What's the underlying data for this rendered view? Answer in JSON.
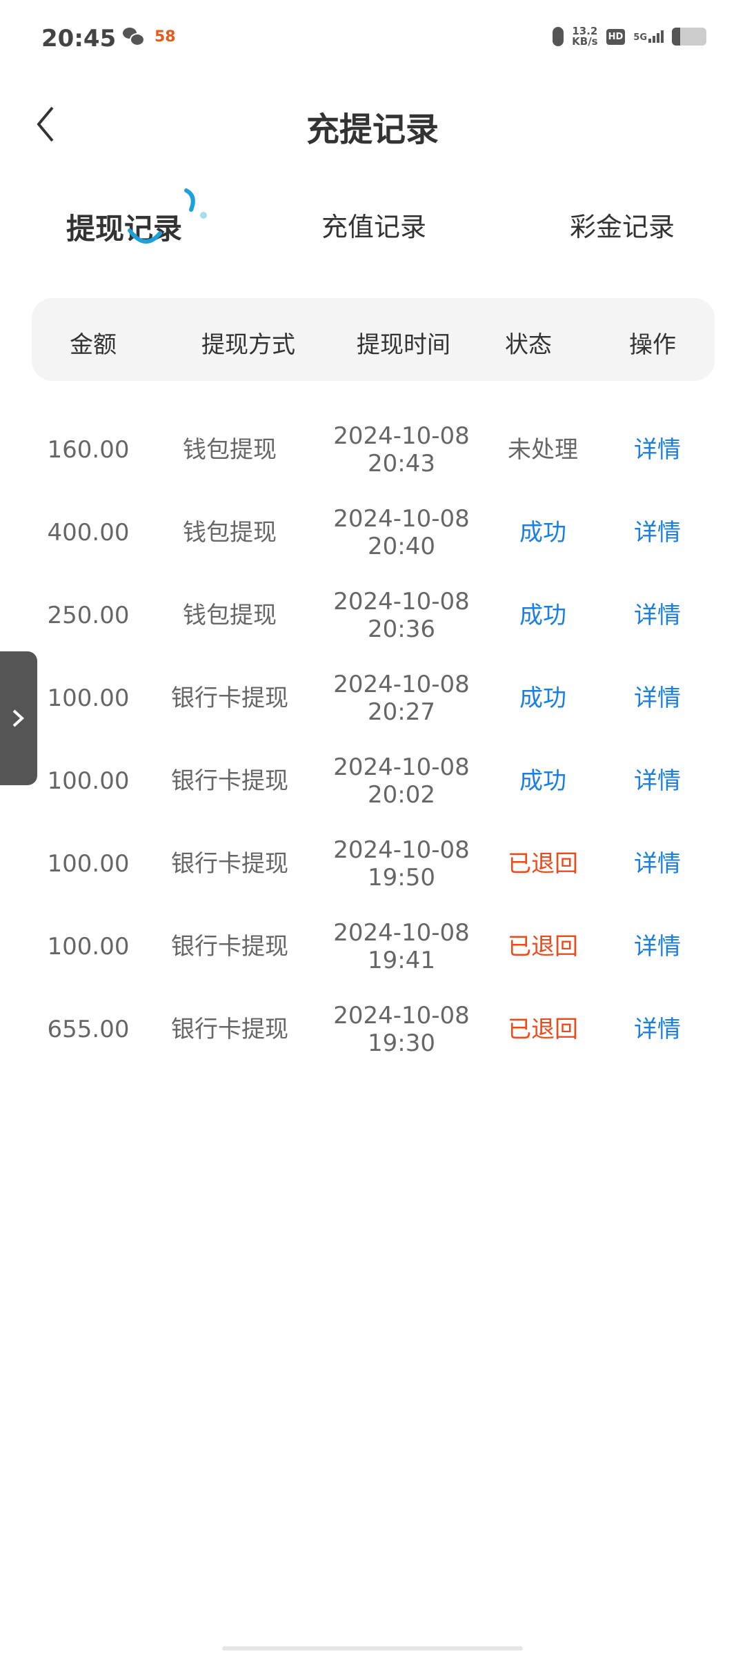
{
  "status_bar": {
    "time": "20:45",
    "net_speed_value": "13.2",
    "net_speed_unit": "KB/s",
    "hd": "HD",
    "network": "5G",
    "app_badge": "58",
    "battery_level": 0.25
  },
  "header": {
    "title": "充提记录"
  },
  "tabs": [
    {
      "label": "提现记录",
      "active": true
    },
    {
      "label": "充值记录",
      "active": false
    },
    {
      "label": "彩金记录",
      "active": false
    }
  ],
  "table": {
    "columns": [
      "金额",
      "提现方式",
      "提现时间",
      "状态",
      "操作"
    ],
    "rows": [
      {
        "amount": "160.00",
        "method": "钱包提现",
        "date": "2024-10-08",
        "time": "20:43",
        "status": "未处理",
        "status_type": "pending",
        "action": "详情"
      },
      {
        "amount": "400.00",
        "method": "钱包提现",
        "date": "2024-10-08",
        "time": "20:40",
        "status": "成功",
        "status_type": "success",
        "action": "详情"
      },
      {
        "amount": "250.00",
        "method": "钱包提现",
        "date": "2024-10-08",
        "time": "20:36",
        "status": "成功",
        "status_type": "success",
        "action": "详情"
      },
      {
        "amount": "100.00",
        "method": "银行卡提现",
        "date": "2024-10-08",
        "time": "20:27",
        "status": "成功",
        "status_type": "success",
        "action": "详情"
      },
      {
        "amount": "100.00",
        "method": "银行卡提现",
        "date": "2024-10-08",
        "time": "20:02",
        "status": "成功",
        "status_type": "success",
        "action": "详情"
      },
      {
        "amount": "100.00",
        "method": "银行卡提现",
        "date": "2024-10-08",
        "time": "19:50",
        "status": "已退回",
        "status_type": "returned",
        "action": "详情"
      },
      {
        "amount": "100.00",
        "method": "银行卡提现",
        "date": "2024-10-08",
        "time": "19:41",
        "status": "已退回",
        "status_type": "returned",
        "action": "详情"
      },
      {
        "amount": "655.00",
        "method": "银行卡提现",
        "date": "2024-10-08",
        "time": "19:30",
        "status": "已退回",
        "status_type": "returned",
        "action": "详情"
      }
    ]
  },
  "colors": {
    "success": "#1a7fe0",
    "returned": "#f0491a",
    "pending": "#666666",
    "link": "#1a7fe0",
    "accent": "#1ea0d8"
  }
}
